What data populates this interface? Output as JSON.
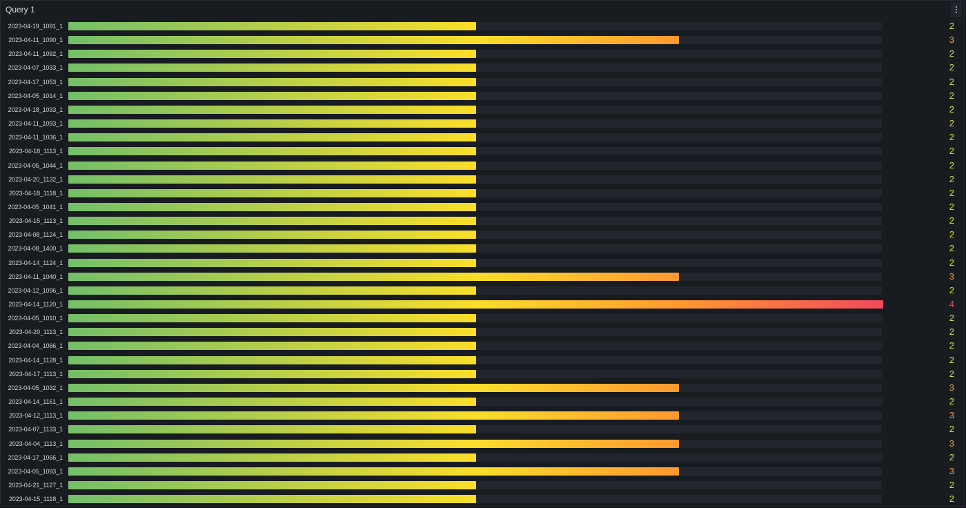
{
  "panel": {
    "title": "Query 1",
    "menu_icon": "kebab-vertical-icon"
  },
  "scale": {
    "min": 0,
    "max": 4
  },
  "colors": {
    "green": "#73bf69",
    "yellow": "#fade2a",
    "orange": "#ff9830",
    "red": "#f2495c",
    "track": "#22252b",
    "value_2": "#d7e23e",
    "value_3": "#f6a13a",
    "value_4": "#f2495c"
  },
  "rows": [
    {
      "label": "2023-04-19_1091_1",
      "value": 2
    },
    {
      "label": "2023-04-11_1090_1",
      "value": 3
    },
    {
      "label": "2023-04-11_1092_1",
      "value": 2
    },
    {
      "label": "2023-04-07_1033_1",
      "value": 2
    },
    {
      "label": "2023-04-17_1053_1",
      "value": 2
    },
    {
      "label": "2023-04-05_1014_1",
      "value": 2
    },
    {
      "label": "2023-04-18_1033_1",
      "value": 2
    },
    {
      "label": "2023-04-11_1093_1",
      "value": 2
    },
    {
      "label": "2023-04-11_1036_1",
      "value": 2
    },
    {
      "label": "2023-04-18_1113_1",
      "value": 2
    },
    {
      "label": "2023-04-05_1044_1",
      "value": 2
    },
    {
      "label": "2023-04-20_1132_1",
      "value": 2
    },
    {
      "label": "2023-04-18_1118_1",
      "value": 2
    },
    {
      "label": "2023-04-05_1041_1",
      "value": 2
    },
    {
      "label": "2023-04-15_1113_1",
      "value": 2
    },
    {
      "label": "2023-04-08_1124_1",
      "value": 2
    },
    {
      "label": "2023-04-08_1400_1",
      "value": 2
    },
    {
      "label": "2023-04-14_1124_1",
      "value": 2
    },
    {
      "label": "2023-04-11_1040_1",
      "value": 3
    },
    {
      "label": "2023-04-12_1096_1",
      "value": 2
    },
    {
      "label": "2023-04-14_1120_1",
      "value": 4
    },
    {
      "label": "2023-04-05_1010_1",
      "value": 2
    },
    {
      "label": "2023-04-20_1113_1",
      "value": 2
    },
    {
      "label": "2023-04-04_1066_1",
      "value": 2
    },
    {
      "label": "2023-04-14_1128_1",
      "value": 2
    },
    {
      "label": "2023-04-17_1113_1",
      "value": 2
    },
    {
      "label": "2023-04-05_1032_1",
      "value": 3
    },
    {
      "label": "2023-04-14_1161_1",
      "value": 2
    },
    {
      "label": "2023-04-12_1113_1",
      "value": 3
    },
    {
      "label": "2023-04-07_1133_1",
      "value": 2
    },
    {
      "label": "2023-04-04_1113_1",
      "value": 3
    },
    {
      "label": "2023-04-17_1066_1",
      "value": 2
    },
    {
      "label": "2023-04-05_1093_1",
      "value": 3
    },
    {
      "label": "2023-04-21_1127_1",
      "value": 2
    },
    {
      "label": "2023-04-15_1118_1",
      "value": 2
    }
  ]
}
